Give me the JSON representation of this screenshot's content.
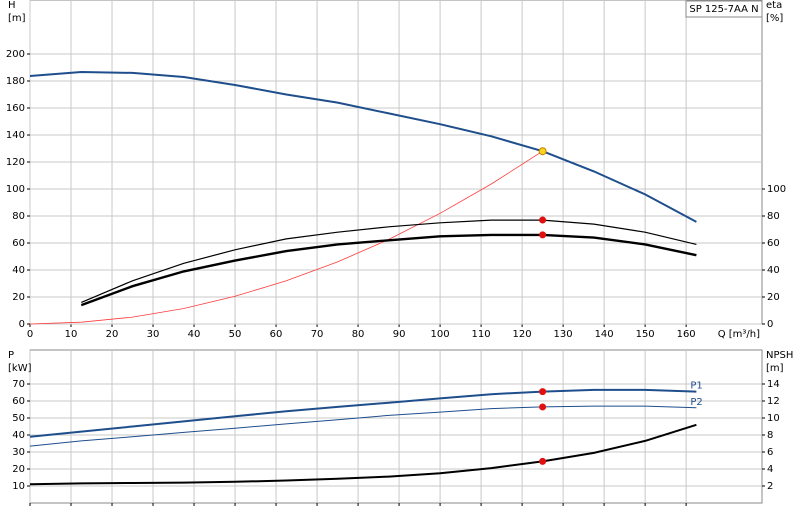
{
  "chart_data": [
    {
      "type": "line",
      "title": "SP 125-7AA N",
      "ylabel": [
        "H",
        "[m]"
      ],
      "y2label": [
        "eta",
        "[%]"
      ],
      "xlabel": "Q [m³/h]",
      "xlim": [
        0,
        178.5
      ],
      "xticks": [
        0,
        10,
        20,
        30,
        40,
        50,
        60,
        70,
        80,
        90,
        100,
        110,
        120,
        130,
        140,
        150,
        160
      ],
      "ylim": [
        0,
        240
      ],
      "yticks": [
        0,
        20,
        40,
        60,
        80,
        100,
        120,
        140,
        160,
        180,
        200
      ],
      "y2lim": [
        0,
        240
      ],
      "y2ticks": [
        0,
        20,
        40,
        60,
        80,
        100
      ],
      "grid": true,
      "series": [
        {
          "color": "#1f4e8c",
          "width": 2,
          "x": [
            0,
            12.5,
            25,
            37.5,
            50,
            62.5,
            75,
            87.5,
            100,
            112.5,
            125,
            137.5,
            150,
            162.5
          ],
          "values": [
            183.7,
            186.7,
            186,
            183,
            177,
            170,
            164,
            156,
            148,
            139,
            128,
            113,
            96,
            75.6
          ]
        },
        {
          "color": "#ff3b3b",
          "width": 0.8,
          "x": [
            0,
            12.5,
            25,
            37.5,
            50,
            62.5,
            75,
            87.5,
            100,
            112.5,
            125
          ],
          "values": [
            0,
            1.3,
            5.1,
            11.5,
            20.5,
            32,
            46,
            62.7,
            82,
            103.7,
            128
          ]
        },
        {
          "color": "#000000",
          "width": 1.2,
          "axis": "y2",
          "x": [
            12.5,
            25,
            37.5,
            50,
            62.5,
            75,
            87.5,
            100,
            112.5,
            125,
            137.5,
            150,
            162.5
          ],
          "values": [
            16,
            32,
            45,
            55,
            63,
            68,
            72,
            75,
            77,
            77,
            74,
            68,
            59
          ]
        },
        {
          "color": "#000000",
          "width": 2.4,
          "axis": "y2",
          "x": [
            12.5,
            25,
            37.5,
            50,
            62.5,
            75,
            87.5,
            100,
            112.5,
            125,
            137.5,
            150,
            162.5
          ],
          "values": [
            14,
            28,
            39,
            47,
            54,
            59,
            62,
            65,
            66,
            66,
            64,
            59,
            51
          ]
        }
      ],
      "markers": [
        {
          "x": 125,
          "y": 128,
          "color": "#ffd21f"
        },
        {
          "x": 125,
          "y": 77,
          "color": "#e01010",
          "axis": "y2"
        },
        {
          "x": 125,
          "y": 66,
          "color": "#e01010",
          "axis": "y2"
        }
      ]
    },
    {
      "type": "line",
      "ylabel": [
        "P",
        "[kW]"
      ],
      "y2label": [
        "NPSH",
        "[m]"
      ],
      "xlim": [
        0,
        178.5
      ],
      "xticks": [
        0,
        10,
        20,
        30,
        40,
        50,
        60,
        70,
        80,
        90,
        100,
        110,
        120,
        130,
        140,
        150,
        160
      ],
      "ylim": [
        0,
        90
      ],
      "yticks": [
        10,
        20,
        30,
        40,
        50,
        60,
        70
      ],
      "y2lim": [
        0,
        18
      ],
      "y2ticks": [
        2,
        4,
        6,
        8,
        10,
        12,
        14
      ],
      "grid": true,
      "series": [
        {
          "name": "P1",
          "color": "#1f4e8c",
          "width": 2,
          "x": [
            0,
            12.5,
            25,
            37.5,
            50,
            62.5,
            75,
            87.5,
            100,
            112.5,
            125,
            137.5,
            150,
            162.5
          ],
          "values": [
            39,
            42,
            45,
            48,
            51,
            54,
            56.5,
            59,
            61.5,
            64,
            65.5,
            66.5,
            66.5,
            65.5
          ]
        },
        {
          "name": "P2",
          "color": "#1f4e8c",
          "width": 1,
          "x": [
            0,
            12.5,
            25,
            37.5,
            50,
            62.5,
            75,
            87.5,
            100,
            112.5,
            125,
            137.5,
            150,
            162.5
          ],
          "values": [
            33.5,
            36.5,
            39,
            41.5,
            44,
            46.5,
            49,
            51.5,
            53.5,
            55.5,
            56.5,
            57,
            57,
            56
          ]
        },
        {
          "color": "#000000",
          "width": 2,
          "axis": "y2",
          "x": [
            0,
            12.5,
            25,
            37.5,
            50,
            62.5,
            75,
            87.5,
            100,
            112.5,
            125,
            137.5,
            150,
            162.5
          ],
          "values": [
            2.2,
            2.3,
            2.35,
            2.4,
            2.5,
            2.65,
            2.85,
            3.1,
            3.5,
            4.1,
            4.9,
            5.9,
            7.3,
            9.2
          ]
        }
      ],
      "markers": [
        {
          "x": 125,
          "y": 65.5,
          "color": "#e01010"
        },
        {
          "x": 125,
          "y": 56.5,
          "color": "#e01010"
        },
        {
          "x": 125,
          "y": 4.9,
          "color": "#e01010",
          "axis": "y2"
        }
      ]
    }
  ]
}
